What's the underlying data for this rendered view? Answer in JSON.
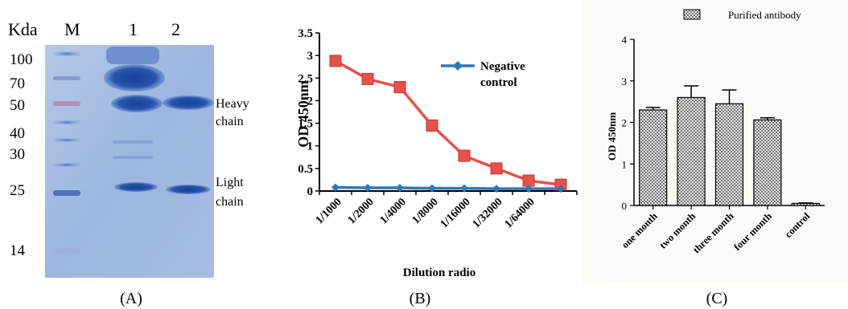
{
  "panels": {
    "a": {
      "caption": "(A)",
      "header": {
        "kda": "Kda",
        "marker": "M",
        "lane1": "1",
        "lane2": "2"
      },
      "markers": [
        "100",
        "70",
        "50",
        "40",
        "30",
        "25",
        "14"
      ],
      "labels": {
        "heavy_1": "Heavy",
        "heavy_2": "chain",
        "light_1": "Light",
        "light_2": "chain"
      }
    },
    "b": {
      "caption": "(B)"
    },
    "c": {
      "caption": "(C)"
    }
  },
  "chart_data": [
    {
      "type": "line",
      "ylabel": "OD 450nm",
      "xlabel": "Dilution radio",
      "categories": [
        "1/1000",
        "1/2000",
        "1/4000",
        "1/8000",
        "1/16000",
        "1/32000",
        "1/64000",
        ""
      ],
      "ylim": [
        0,
        3.5
      ],
      "yticks": [
        "0",
        "0.5",
        "1",
        "1.5",
        "2",
        "2.5",
        "3",
        "3.5"
      ],
      "legend": {
        "position": "top-right"
      },
      "series": [
        {
          "values": [
            2.88,
            2.48,
            2.3,
            1.45,
            0.78,
            0.5,
            0.23,
            0.14
          ],
          "color": "#e8504b",
          "marker": "square"
        },
        {
          "name": "Negative control",
          "values": [
            0.08,
            0.07,
            0.07,
            0.06,
            0.06,
            0.05,
            0.05,
            0.05
          ],
          "color": "#2a7ab8",
          "marker": "diamond"
        }
      ]
    },
    {
      "type": "bar",
      "ylabel": "OD 450nm",
      "categories": [
        "one month",
        "two month",
        "three month",
        "four month",
        "control"
      ],
      "ylim": [
        0,
        4
      ],
      "yticks": [
        "0",
        "1",
        "2",
        "3",
        "4"
      ],
      "legend": {
        "position": "top"
      },
      "series": [
        {
          "name": "Purified antibody",
          "values": [
            2.3,
            2.6,
            2.45,
            2.06,
            0.05
          ],
          "errors": [
            0.06,
            0.28,
            0.33,
            0.05,
            0.01
          ],
          "pattern": "checkered"
        }
      ]
    }
  ]
}
